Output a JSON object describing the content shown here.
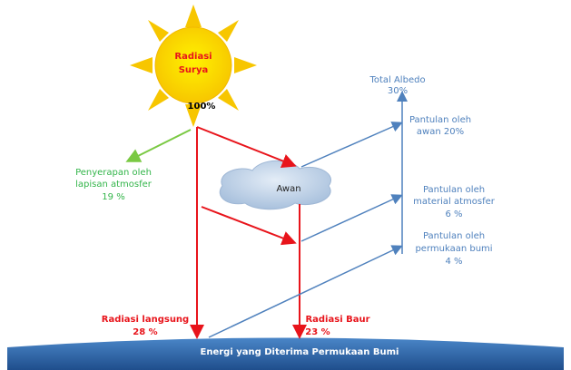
{
  "sun": {
    "label_lines": [
      "Radiasi",
      "Surya"
    ],
    "percent": "100%"
  },
  "albedo": {
    "title": "Total Albedo",
    "value": "30%"
  },
  "cloud": {
    "label": "Awan"
  },
  "absorption": {
    "lines": [
      "Penyerapan oleh",
      "lapisan atmosfer",
      "19 %"
    ]
  },
  "reflections": [
    {
      "lines": [
        "Pantulan oleh",
        "awan 20%"
      ]
    },
    {
      "lines": [
        "Pantulan oleh",
        "material atmosfer",
        "6 %"
      ]
    },
    {
      "lines": [
        "Pantulan oleh",
        "permukaan bumi",
        "4 %"
      ]
    }
  ],
  "direct": {
    "lines": [
      "Radiasi langsung",
      "28 %"
    ]
  },
  "diffuse": {
    "lines": [
      "Radiasi Baur",
      "23 %"
    ]
  },
  "earth": {
    "label": "Energi yang Diterima Permukaan Bumi"
  }
}
